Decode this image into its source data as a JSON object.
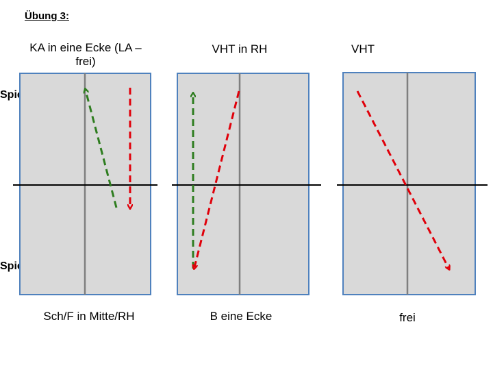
{
  "heading": "Übung 3:",
  "labels": {
    "top_player": "Spieler B",
    "bottom_player": "Spieler A"
  },
  "colors": {
    "court": "#d9d9d9",
    "court_border": "#4f81bd",
    "center_line": "#7f7f7f",
    "net": "#000000",
    "green_arrow": "#2e7d1f",
    "red_arrow": "#e0000a"
  },
  "panels": [
    {
      "title": "KA in eine Ecke (LA – frei)",
      "caption": "Sch/F in Mitte/RH"
    },
    {
      "title": "VHT in RH",
      "caption": "B eine Ecke"
    },
    {
      "title": "VHT",
      "caption": "frei"
    }
  ]
}
